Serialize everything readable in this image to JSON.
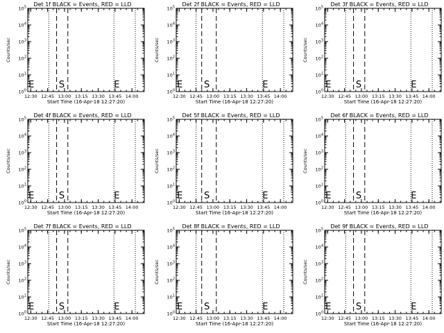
{
  "chart_data": [
    {
      "type": "line",
      "title": "Det 1f BLACK = Events, RED = LLD",
      "xlabel": "Start Time (16-Apr-18 12:27:20)",
      "ylabel": "Counts/sec",
      "x_tick_labels": [
        "12:30",
        "12:45",
        "13:00",
        "13:15",
        "13:30",
        "13:45",
        "14:00"
      ],
      "y_tick_labels": [
        "10",
        "10",
        "10",
        "10",
        "10",
        "10"
      ],
      "y_tick_exponents": [
        "0",
        "1",
        "2",
        "3",
        "4",
        "5"
      ],
      "ylim": [
        1,
        100000
      ],
      "y_scale": "log",
      "dotted_vlines": [
        "12:46",
        "13:44",
        "14:03"
      ],
      "dashed_vlines": [
        "12:53",
        "13:03"
      ],
      "markers": [
        {
          "label": "E",
          "x": "12:28"
        },
        {
          "label": "S",
          "x": "12:55"
        },
        {
          "label": "E",
          "x": "13:44"
        }
      ]
    },
    {
      "type": "line",
      "title": "Det 2f BLACK = Events, RED = LLD",
      "xlabel": "Start Time (16-Apr-18 12:27:20)",
      "ylabel": "Counts/sec",
      "x_tick_labels": [
        "12:30",
        "12:45",
        "13:00",
        "13:15",
        "13:30",
        "13:45",
        "14:00"
      ],
      "y_tick_labels": [
        "10",
        "10",
        "10",
        "10",
        "10",
        "10"
      ],
      "y_tick_exponents": [
        "0",
        "1",
        "2",
        "3",
        "4",
        "5"
      ],
      "ylim": [
        1,
        100000
      ],
      "y_scale": "log",
      "dotted_vlines": [
        "12:45",
        "13:44",
        "14:03"
      ],
      "dashed_vlines": [
        "12:50",
        "13:03"
      ],
      "markers": [
        {
          "label": "E",
          "x": "12:28"
        },
        {
          "label": "S",
          "x": "12:52"
        },
        {
          "label": "E",
          "x": "13:44"
        }
      ]
    },
    {
      "type": "line",
      "title": "Det 3f BLACK = Events, RED = LLD",
      "xlabel": "Start Time (16-Apr-18 12:27:20)",
      "ylabel": "Counts/sec",
      "x_tick_labels": [
        "12:30",
        "12:45",
        "13:00",
        "13:15",
        "13:30",
        "13:45",
        "14:00"
      ],
      "y_tick_labels": [
        "10",
        "10",
        "10",
        "10",
        "10",
        "10"
      ],
      "y_tick_exponents": [
        "0",
        "1",
        "2",
        "3",
        "4",
        "5"
      ],
      "ylim": [
        1,
        100000
      ],
      "y_scale": "log",
      "dotted_vlines": [
        "12:46",
        "13:44",
        "14:03"
      ],
      "dashed_vlines": [
        "12:53",
        "13:03"
      ],
      "markers": [
        {
          "label": "E",
          "x": "12:28"
        },
        {
          "label": "S",
          "x": "12:55"
        },
        {
          "label": "E",
          "x": "13:44"
        }
      ]
    },
    {
      "type": "line",
      "title": "Det 4f BLACK = Events, RED = LLD",
      "xlabel": "Start Time (16-Apr-18 12:27:20)",
      "ylabel": "Counts/sec",
      "x_tick_labels": [
        "12:30",
        "12:45",
        "13:00",
        "13:15",
        "13:30",
        "13:45",
        "14:00"
      ],
      "y_tick_labels": [
        "10",
        "10",
        "10",
        "10",
        "10",
        "10"
      ],
      "y_tick_exponents": [
        "0",
        "1",
        "2",
        "3",
        "4",
        "5"
      ],
      "ylim": [
        1,
        100000
      ],
      "y_scale": "log",
      "dotted_vlines": [
        "12:46",
        "13:44",
        "14:03"
      ],
      "dashed_vlines": [
        "12:53",
        "13:03"
      ],
      "markers": [
        {
          "label": "E",
          "x": "12:28"
        },
        {
          "label": "S",
          "x": "12:55"
        },
        {
          "label": "E",
          "x": "13:44"
        }
      ]
    },
    {
      "type": "line",
      "title": "Det 5f BLACK = Events, RED = LLD",
      "xlabel": "Start Time (16-Apr-18 12:27:20)",
      "ylabel": "Counts/sec",
      "x_tick_labels": [
        "12:30",
        "12:45",
        "13:00",
        "13:15",
        "13:30",
        "13:45",
        "14:00"
      ],
      "y_tick_labels": [
        "10",
        "10",
        "10",
        "10",
        "10",
        "10"
      ],
      "y_tick_exponents": [
        "0",
        "1",
        "2",
        "3",
        "4",
        "5"
      ],
      "ylim": [
        1,
        100000
      ],
      "y_scale": "log",
      "dotted_vlines": [
        "12:45",
        "13:44",
        "14:03"
      ],
      "dashed_vlines": [
        "12:50",
        "13:03"
      ],
      "markers": [
        {
          "label": "E",
          "x": "12:28"
        },
        {
          "label": "S",
          "x": "12:52"
        },
        {
          "label": "E",
          "x": "13:44"
        }
      ]
    },
    {
      "type": "line",
      "title": "Det 6f BLACK = Events, RED = LLD",
      "xlabel": "Start Time (16-Apr-18 12:27:20)",
      "ylabel": "Counts/sec",
      "x_tick_labels": [
        "12:30",
        "12:45",
        "13:00",
        "13:15",
        "13:30",
        "13:45",
        "14:00"
      ],
      "y_tick_labels": [
        "10",
        "10",
        "10",
        "10",
        "10",
        "10"
      ],
      "y_tick_exponents": [
        "0",
        "1",
        "2",
        "3",
        "4",
        "5"
      ],
      "ylim": [
        1,
        100000
      ],
      "y_scale": "log",
      "dotted_vlines": [
        "12:46",
        "13:44",
        "14:03"
      ],
      "dashed_vlines": [
        "12:53",
        "13:03"
      ],
      "markers": [
        {
          "label": "E",
          "x": "12:28"
        },
        {
          "label": "S",
          "x": "12:55"
        },
        {
          "label": "E",
          "x": "13:44"
        }
      ]
    },
    {
      "type": "line",
      "title": "Det 7f BLACK = Events, RED = LLD",
      "xlabel": "Start Time (16-Apr-18 12:27:20)",
      "ylabel": "Counts/sec",
      "x_tick_labels": [
        "12:30",
        "12:45",
        "13:00",
        "13:15",
        "13:30",
        "13:45",
        "14:00"
      ],
      "y_tick_labels": [
        "10",
        "10",
        "10",
        "10",
        "10",
        "10"
      ],
      "y_tick_exponents": [
        "0",
        "1",
        "2",
        "3",
        "4",
        "5"
      ],
      "ylim": [
        1,
        100000
      ],
      "y_scale": "log",
      "dotted_vlines": [
        "12:46",
        "13:44",
        "14:03"
      ],
      "dashed_vlines": [
        "12:53",
        "13:03"
      ],
      "markers": [
        {
          "label": "E",
          "x": "12:28"
        },
        {
          "label": "S",
          "x": "12:55"
        },
        {
          "label": "E",
          "x": "13:44"
        }
      ]
    },
    {
      "type": "line",
      "title": "Det 8f BLACK = Events, RED = LLD",
      "xlabel": "Start Time (16-Apr-18 12:27:20)",
      "ylabel": "Counts/sec",
      "x_tick_labels": [
        "12:30",
        "12:45",
        "13:00",
        "13:15",
        "13:30",
        "13:45",
        "14:00"
      ],
      "y_tick_labels": [
        "10",
        "10",
        "10",
        "10",
        "10",
        "10"
      ],
      "y_tick_exponents": [
        "0",
        "1",
        "2",
        "3",
        "4",
        "5"
      ],
      "ylim": [
        1,
        100000
      ],
      "y_scale": "log",
      "dotted_vlines": [
        "12:45",
        "13:44",
        "14:03"
      ],
      "dashed_vlines": [
        "12:50",
        "13:03"
      ],
      "markers": [
        {
          "label": "E",
          "x": "12:28"
        },
        {
          "label": "S",
          "x": "12:52"
        },
        {
          "label": "E",
          "x": "13:44"
        }
      ]
    },
    {
      "type": "line",
      "title": "Det 9f BLACK = Events, RED = LLD",
      "xlabel": "Start Time (16-Apr-18 12:27:20)",
      "ylabel": "Counts/sec",
      "x_tick_labels": [
        "12:30",
        "12:45",
        "13:00",
        "13:15",
        "13:30",
        "13:45",
        "14:00"
      ],
      "y_tick_labels": [
        "10",
        "10",
        "10",
        "10",
        "10",
        "10"
      ],
      "y_tick_exponents": [
        "0",
        "1",
        "2",
        "3",
        "4",
        "5"
      ],
      "ylim": [
        1,
        100000
      ],
      "y_scale": "log",
      "dotted_vlines": [
        "12:46",
        "13:44",
        "14:03"
      ],
      "dashed_vlines": [
        "12:53",
        "13:03"
      ],
      "markers": [
        {
          "label": "E",
          "x": "12:28"
        },
        {
          "label": "S",
          "x": "12:55"
        },
        {
          "label": "E",
          "x": "13:44"
        }
      ]
    }
  ]
}
